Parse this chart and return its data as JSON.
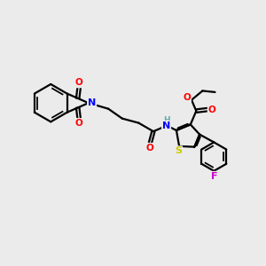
{
  "bg_color": "#EBEBEB",
  "bond_color": "#000000",
  "atom_colors": {
    "N": "#0000FF",
    "O": "#FF0000",
    "S": "#CCCC00",
    "F": "#CC00CC",
    "H": "#66AAAA",
    "C": "#000000"
  },
  "figsize": [
    3.0,
    3.0
  ],
  "dpi": 100,
  "xlim": [
    0,
    10
  ],
  "ylim": [
    0,
    10
  ]
}
